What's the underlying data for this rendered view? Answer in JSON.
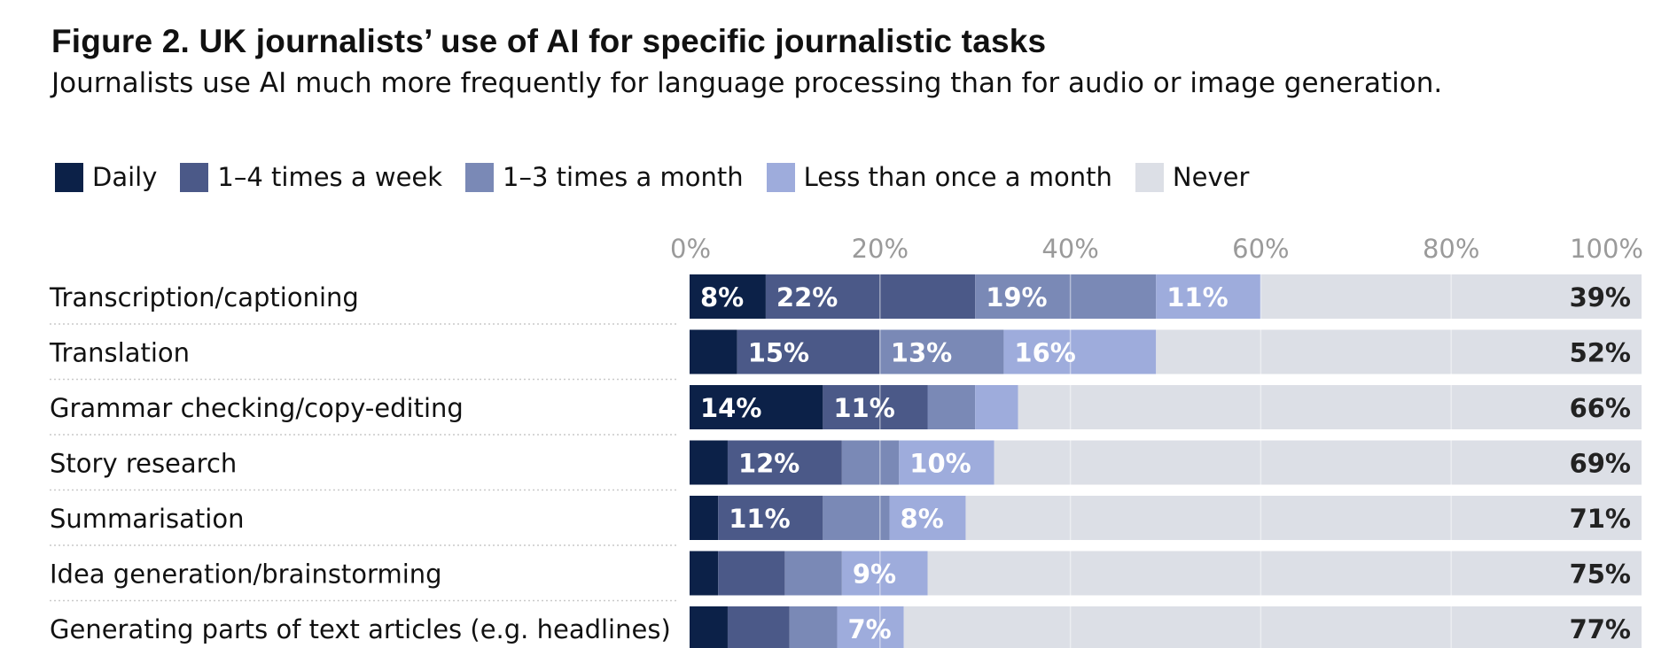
{
  "title": "Figure 2. UK journalists’ use of AI for specific journalistic tasks",
  "subtitle": "Journalists use AI much more frequently for language processing than for audio or image generation.",
  "legend": [
    {
      "label": "Daily",
      "color": "#0c2148"
    },
    {
      "label": "1–4 times a week",
      "color": "#4b5988"
    },
    {
      "label": "1–3 times a month",
      "color": "#7a89b6"
    },
    {
      "label": "Less than once a month",
      "color": "#9eacdc"
    },
    {
      "label": "Never",
      "color": "#dcdfe6"
    }
  ],
  "chart_data": {
    "type": "bar",
    "orientation": "horizontal",
    "stacked": true,
    "xlim": [
      0,
      100
    ],
    "x_ticks": [
      "0%",
      "20%",
      "40%",
      "60%",
      "80%",
      "100%"
    ],
    "categories": [
      "Transcription/captioning",
      "Translation",
      "Grammar checking/copy-editing",
      "Story research",
      "Summarisation",
      "Idea generation/brainstorming",
      "Generating parts of text articles (e.g. headlines)"
    ],
    "series": [
      {
        "name": "Daily",
        "values": [
          8,
          5,
          14,
          4,
          3,
          3,
          4
        ],
        "labels": [
          "8%",
          "",
          "14%",
          "",
          "",
          "",
          ""
        ]
      },
      {
        "name": "1–4 times a week",
        "values": [
          22,
          15,
          11,
          12,
          11,
          7,
          6.5
        ],
        "labels": [
          "22%",
          "15%",
          "11%",
          "12%",
          "11%",
          "",
          ""
        ]
      },
      {
        "name": "1–3 times a month",
        "values": [
          19,
          13,
          5,
          6,
          7,
          6,
          5
        ],
        "labels": [
          "19%",
          "13%",
          "",
          "",
          "",
          "",
          ""
        ]
      },
      {
        "name": "Less than once a month",
        "values": [
          11,
          16,
          4.5,
          10,
          8,
          9,
          7
        ],
        "labels": [
          "11%",
          "16%",
          "",
          "10%",
          "8%",
          "9%",
          "7%"
        ]
      },
      {
        "name": "Never",
        "values": [
          39,
          52,
          66,
          69,
          71,
          75,
          77
        ],
        "labels": [
          "39%",
          "52%",
          "66%",
          "69%",
          "71%",
          "75%",
          "77%"
        ]
      }
    ]
  }
}
